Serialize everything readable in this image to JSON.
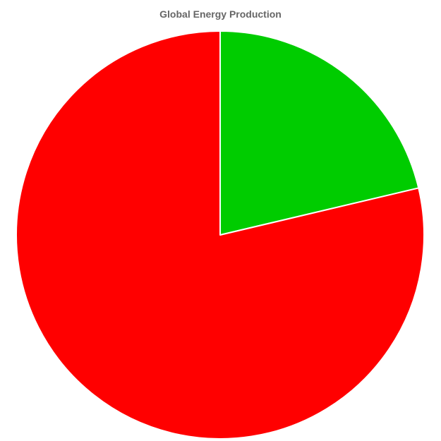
{
  "chart_data": {
    "type": "pie",
    "title": "Global Energy Production",
    "slices": [
      {
        "label": "",
        "value": 21.3,
        "color": "#00cc00"
      },
      {
        "label": "",
        "value": 78.7,
        "color": "#ff0000"
      }
    ],
    "start_angle_deg": 0,
    "direction": "clockwise",
    "border_color": "#ffffff"
  }
}
